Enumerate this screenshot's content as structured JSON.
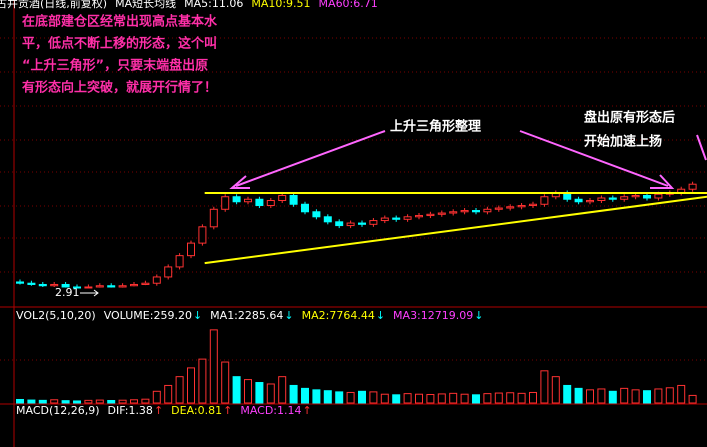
{
  "chart_data": {
    "type": "candlestick",
    "header": [
      {
        "text": "古井贡酒(日线,前复权)",
        "color": "#ffffff"
      },
      {
        "text": "MA短长均线",
        "color": "#ffffff"
      },
      {
        "text": "MA5:11.06",
        "color": "#ffffff"
      },
      {
        "text": "MA10:9.51",
        "color": "#ffff00"
      },
      {
        "text": "MA60:6.71",
        "color": "#ff40ff"
      }
    ],
    "note": [
      "在底部建仓区经常出现高点基本水",
      "平，低点不断上移的形态，这个叫",
      "“上升三角形”，只要末端盘出原",
      "有形态向上突破，就展开行情了！"
    ],
    "pattern_label": "上升三角形整理",
    "breakout_label": [
      "盘出原有形态后",
      "开始加速上扬"
    ],
    "low_label": "2.91",
    "ylim": [
      2.6,
      24.7
    ],
    "up_color": "#ff3232",
    "down_color": "#00ffff",
    "open": [
      3.4,
      3.3,
      3.2,
      3.1,
      3.2,
      3.0,
      2.95,
      3.0,
      3.1,
      3.0,
      3.1,
      3.2,
      3.3,
      3.8,
      4.6,
      5.5,
      6.5,
      7.8,
      9.2,
      10.2,
      9.8,
      10.0,
      9.5,
      9.9,
      10.3,
      9.6,
      9.0,
      8.6,
      8.2,
      7.9,
      8.1,
      8.0,
      8.3,
      8.5,
      8.4,
      8.6,
      8.7,
      8.8,
      8.9,
      9.0,
      9.1,
      9.0,
      9.2,
      9.3,
      9.4,
      9.5,
      9.6,
      10.2,
      10.5,
      10.0,
      9.8,
      9.9,
      10.1,
      10.0,
      10.2,
      10.3,
      10.1,
      10.4,
      10.5,
      10.8
    ],
    "high": [
      3.6,
      3.5,
      3.4,
      3.4,
      3.4,
      3.2,
      3.2,
      3.3,
      3.3,
      3.3,
      3.4,
      3.5,
      4.0,
      4.8,
      5.7,
      6.7,
      8.0,
      9.4,
      10.4,
      10.4,
      10.2,
      10.2,
      10.1,
      10.5,
      10.5,
      9.8,
      9.2,
      8.8,
      8.4,
      8.3,
      8.3,
      8.5,
      8.7,
      8.7,
      8.8,
      8.9,
      9.0,
      9.1,
      9.2,
      9.3,
      9.3,
      9.4,
      9.5,
      9.6,
      9.7,
      9.8,
      10.4,
      10.7,
      10.7,
      10.2,
      10.1,
      10.3,
      10.3,
      10.4,
      10.5,
      10.5,
      10.6,
      10.7,
      11.0,
      11.4
    ],
    "low": [
      3.2,
      3.1,
      3.0,
      3.0,
      2.95,
      2.91,
      2.93,
      2.95,
      2.95,
      2.95,
      3.05,
      3.15,
      3.1,
      3.6,
      4.4,
      5.3,
      6.3,
      7.6,
      9.0,
      9.6,
      9.6,
      9.3,
      9.3,
      9.7,
      9.4,
      8.8,
      8.4,
      8.0,
      7.7,
      7.7,
      7.8,
      7.8,
      8.1,
      8.2,
      8.2,
      8.4,
      8.5,
      8.6,
      8.7,
      8.8,
      8.8,
      8.8,
      9.0,
      9.1,
      9.2,
      9.3,
      9.4,
      10.0,
      9.8,
      9.6,
      9.6,
      9.7,
      9.8,
      9.8,
      10.0,
      9.9,
      9.9,
      10.2,
      10.3,
      10.6
    ],
    "close": [
      3.3,
      3.2,
      3.1,
      3.2,
      3.0,
      2.95,
      3.0,
      3.1,
      3.0,
      3.1,
      3.2,
      3.3,
      3.8,
      4.6,
      5.5,
      6.5,
      7.8,
      9.2,
      10.2,
      9.8,
      10.0,
      9.5,
      9.9,
      10.3,
      9.6,
      9.0,
      8.6,
      8.2,
      7.9,
      8.1,
      8.0,
      8.3,
      8.5,
      8.4,
      8.6,
      8.7,
      8.8,
      8.9,
      9.0,
      9.1,
      9.0,
      9.2,
      9.3,
      9.4,
      9.5,
      9.6,
      10.2,
      10.5,
      10.0,
      9.8,
      9.9,
      10.1,
      10.0,
      10.2,
      10.3,
      10.1,
      10.4,
      10.5,
      10.8,
      11.2
    ],
    "trendlines": [
      {
        "x": [
          16.2,
          60.3
        ],
        "y": [
          10.5,
          10.5
        ],
        "color": "#ffff00"
      },
      {
        "x": [
          16.2,
          60.3
        ],
        "y": [
          4.9,
          10.2
        ],
        "color": "#ffff00"
      }
    ],
    "volume": {
      "legend": [
        {
          "text": "VOL2(5,10,20)",
          "color": "#ffffff"
        },
        {
          "text": "VOLUME:259.20",
          "color": "#ffffff",
          "arrow": "↓"
        },
        {
          "text": "MA1:2285.64",
          "color": "#ffffff",
          "arrow": "↓"
        },
        {
          "text": "MA2:7764.44",
          "color": "#ffff00",
          "arrow": "↓"
        },
        {
          "text": "MA3:12719.09",
          "color": "#ff40ff",
          "arrow": "↓"
        }
      ],
      "ylim": [
        0,
        2700
      ],
      "values": [
        120,
        100,
        90,
        110,
        80,
        70,
        90,
        100,
        85,
        95,
        110,
        130,
        400,
        600,
        900,
        1200,
        1500,
        2500,
        1400,
        900,
        800,
        700,
        650,
        900,
        600,
        500,
        450,
        420,
        380,
        360,
        400,
        380,
        300,
        280,
        320,
        300,
        290,
        310,
        330,
        300,
        280,
        320,
        340,
        350,
        330,
        360,
        1100,
        900,
        600,
        500,
        450,
        480,
        400,
        500,
        450,
        420,
        480,
        520,
        600,
        259.2
      ]
    },
    "macd": {
      "legend": [
        {
          "text": "MACD(12,26,9)",
          "color": "#ffffff"
        },
        {
          "text": "DIF:1.38",
          "color": "#ffffff",
          "arrow": "↑"
        },
        {
          "text": "DEA:0.81",
          "color": "#ffff00",
          "arrow": "↑"
        },
        {
          "text": "MACD:1.14",
          "color": "#ff40ff",
          "arrow": "↑"
        }
      ]
    }
  }
}
